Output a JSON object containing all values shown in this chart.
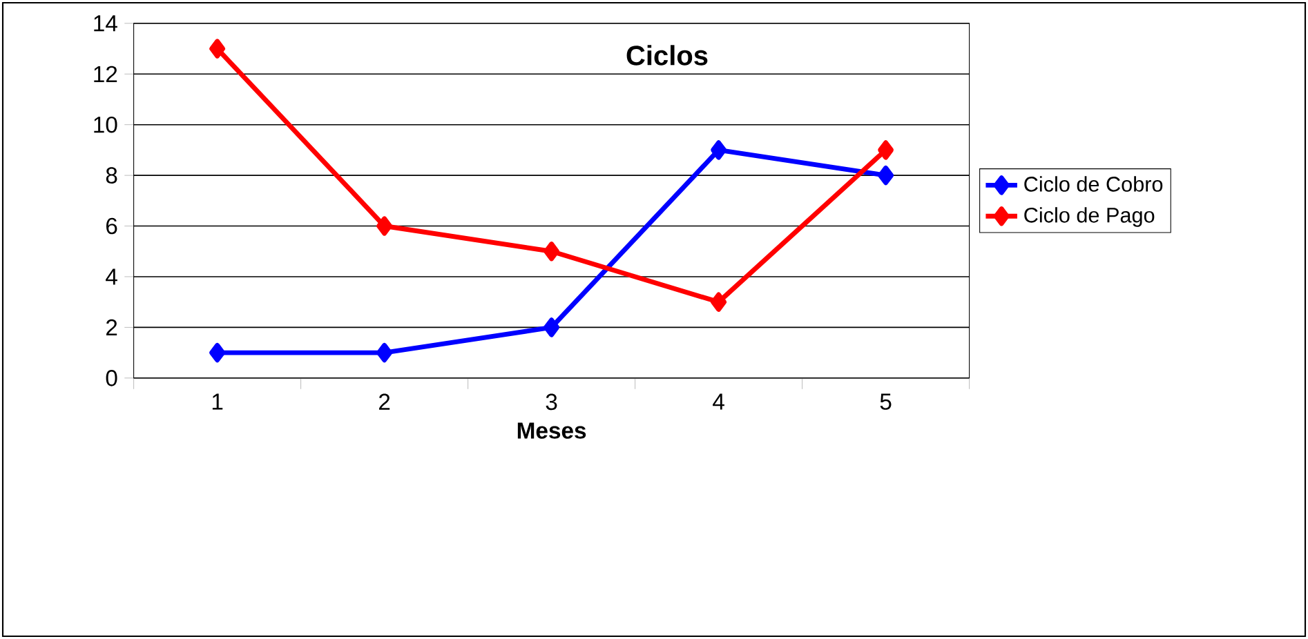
{
  "chart_data": {
    "type": "line",
    "title": "Ciclos",
    "xlabel": "Meses",
    "categories": [
      "1",
      "2",
      "3",
      "4",
      "5"
    ],
    "series": [
      {
        "name": "Ciclo de Cobro",
        "color": "#0000ff",
        "values": [
          1,
          1,
          2,
          9,
          8
        ]
      },
      {
        "name": "Ciclo de Pago",
        "color": "#ff0000",
        "values": [
          13,
          6,
          5,
          3,
          9
        ]
      }
    ],
    "ylim": [
      0,
      14
    ],
    "yticks": [
      0,
      2,
      4,
      6,
      8,
      10,
      12,
      14
    ],
    "grid": "y",
    "legend": "right",
    "marker": "diamond",
    "line_style": "solid"
  }
}
